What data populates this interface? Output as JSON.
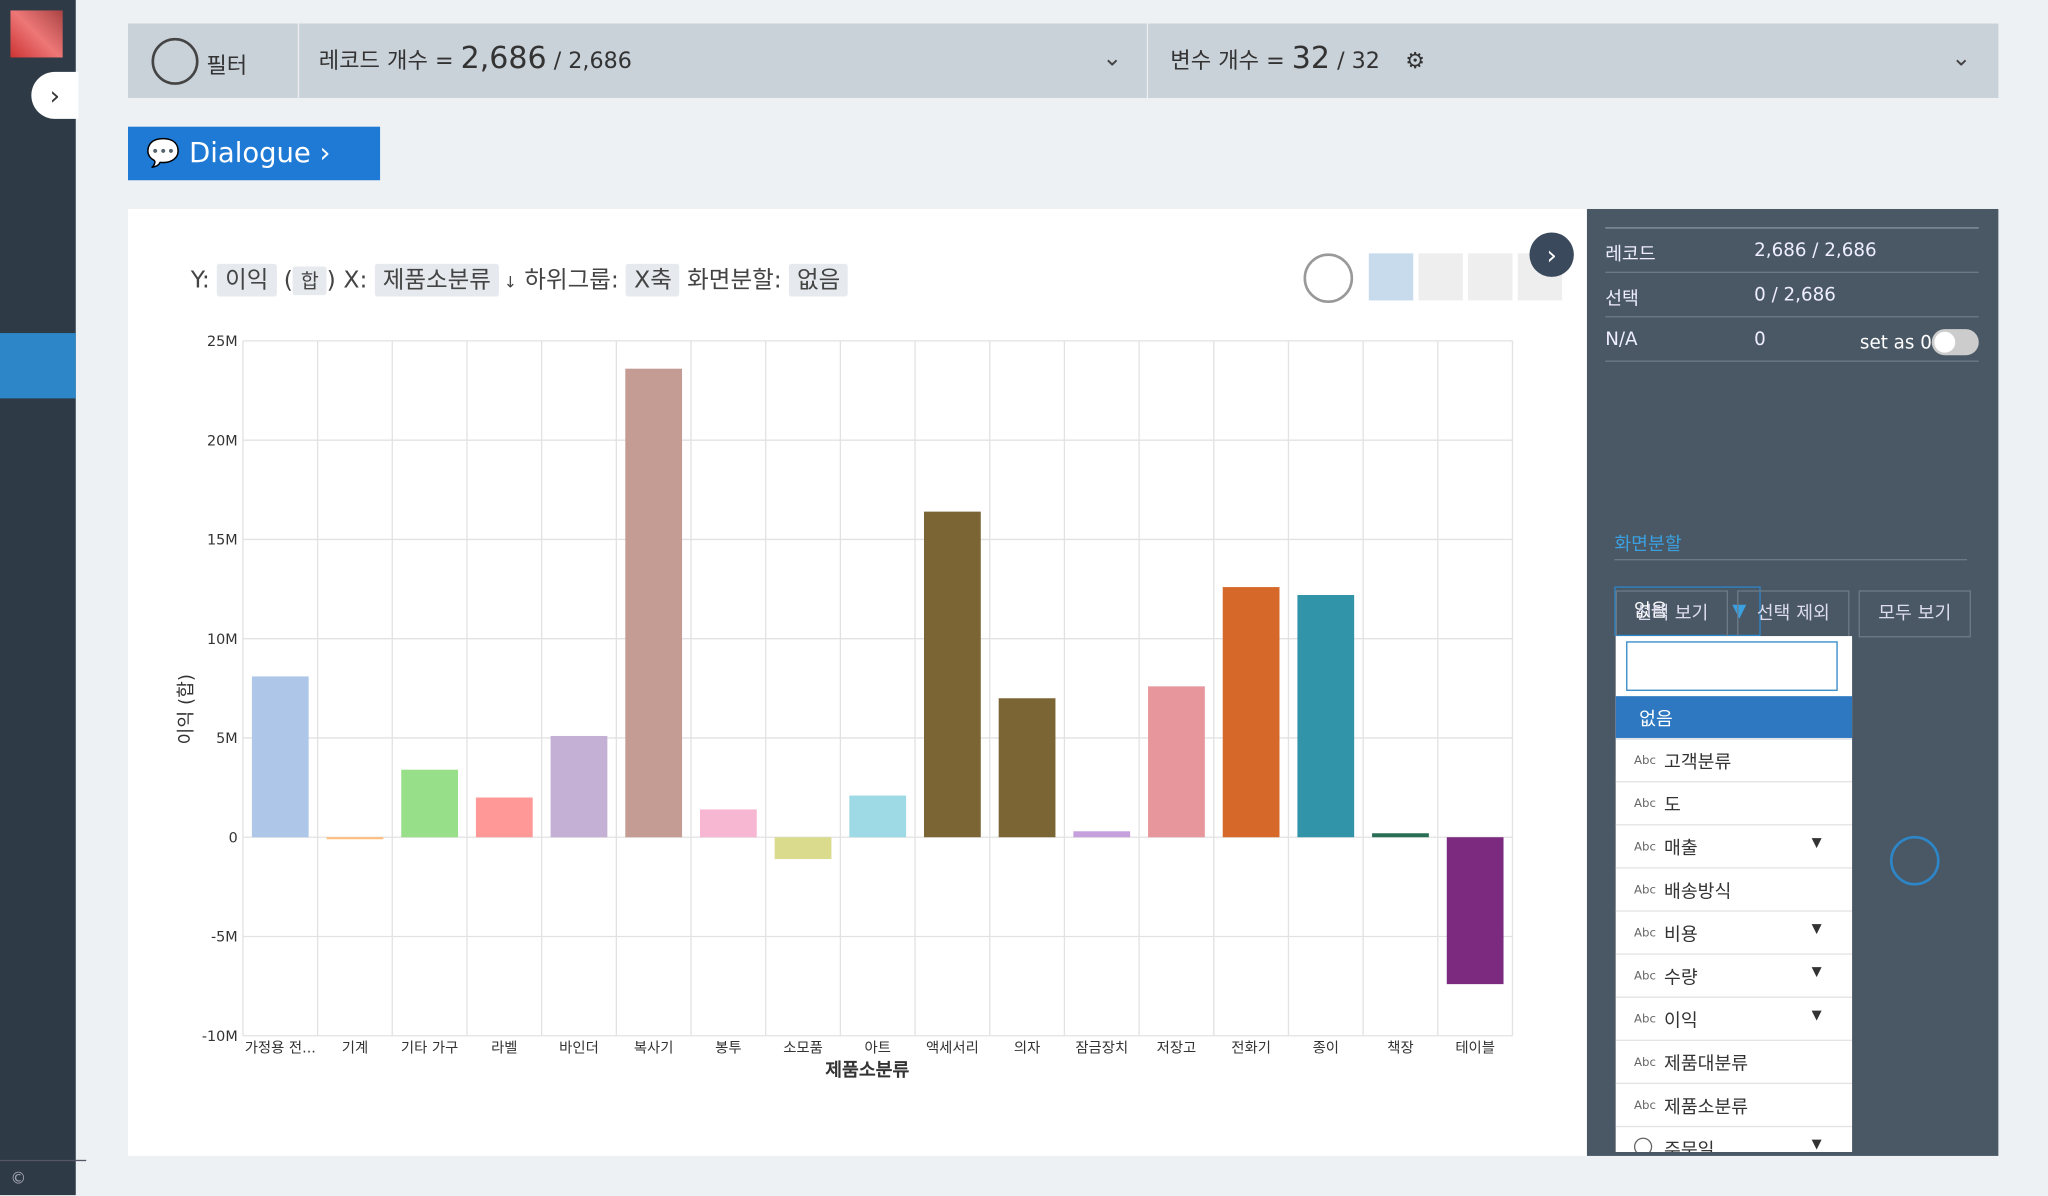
{
  "top_bar": {
    "filter": "필터",
    "records_label": "레코드 개수 =",
    "records_shown": "2,686",
    "records_sep": "/",
    "records_total": "2,686",
    "vars_label": "변수 개수 =",
    "vars_shown": 32,
    "vars_sep": "/",
    "vars_total": 32
  },
  "dialogue_button": "Dialogue",
  "chart_toolbar": {
    "y_label": "Y:",
    "y_value": "이익",
    "agg_open": "(",
    "agg": "합",
    "agg_close": ")",
    "x_label": "X:",
    "x_value": "제품소분류",
    "subgroup_label": "하위그룹:",
    "subgroup_value": "X축",
    "split_label": "화면분할:",
    "split_value": "없음"
  },
  "chart_data": {
    "type": "bar",
    "x_label": "제품소분류",
    "y_label": "이익 (합)",
    "categories": [
      "가정용 전...",
      "기계",
      "기타 가구",
      "라벨",
      "바인더",
      "복사기",
      "봉투",
      "소모품",
      "아트",
      "액세서리",
      "의자",
      "잠금장치",
      "저장고",
      "전화기",
      "종이",
      "책장",
      "테이블"
    ],
    "values": [
      8100000,
      -100000,
      3400000,
      2000000,
      5100000,
      23600000,
      1400000,
      -1100000,
      2100000,
      16400000,
      7000000,
      300000,
      7600000,
      12600000,
      12200000,
      200000,
      -7400000
    ],
    "colors": [
      "#aec7e8",
      "#ffbb78",
      "#98df8a",
      "#ff9896",
      "#c5b0d5",
      "#c49c94",
      "#f7b6d2",
      "#dbdb8d",
      "#9edae5",
      "#7b6535",
      "#7b6535",
      "#c5a0dc",
      "#e7969c",
      "#d6692a",
      "#3194a8",
      "#2a6e55",
      "#7b2a80"
    ],
    "ylim": [
      -10000000,
      25000000
    ],
    "yticks": [
      {
        "value": -10000000,
        "label": "-10M"
      },
      {
        "value": -5000000,
        "label": "-5M"
      },
      0,
      {
        "value": 5000000,
        "label": "5M"
      },
      {
        "value": 10000000,
        "label": "10M"
      },
      {
        "value": 15000000,
        "label": "15M"
      },
      {
        "value": 20000000,
        "label": "20M"
      },
      {
        "value": 25000000,
        "label": "25M"
      }
    ],
    "grid": true
  },
  "side_panel": {
    "rows": [
      {
        "label": "레코드",
        "value": "2,686 / 2,686"
      },
      {
        "label": "선택",
        "value": "0 / 2,686"
      },
      {
        "label": "N/A",
        "value": "0"
      }
    ],
    "set_as_zero": "set as 0",
    "buttons": [
      "선택 보기",
      "선택 제외",
      "모두 보기"
    ],
    "section": "화면분할",
    "select": "없음"
  },
  "dropdown": {
    "options": [
      {
        "label": "없음"
      },
      {
        "badge": "Abc",
        "label": "고객분류"
      },
      {
        "badge": "Abc",
        "label": "도"
      },
      {
        "badge": "Abc",
        "label": "매출",
        "submenu": true
      },
      {
        "badge": "Abc",
        "label": "배송방식"
      },
      {
        "badge": "Abc",
        "label": "비용",
        "submenu": true
      },
      {
        "badge": "Abc",
        "label": "수량",
        "submenu": true
      },
      {
        "badge": "Abc",
        "label": "이익",
        "submenu": true
      },
      {
        "badge": "Abc",
        "label": "제품대분류"
      },
      {
        "badge": "Abc",
        "label": "제품소분류"
      },
      {
        "label": "주문일",
        "submenu": true
      }
    ]
  },
  "footer": "©"
}
